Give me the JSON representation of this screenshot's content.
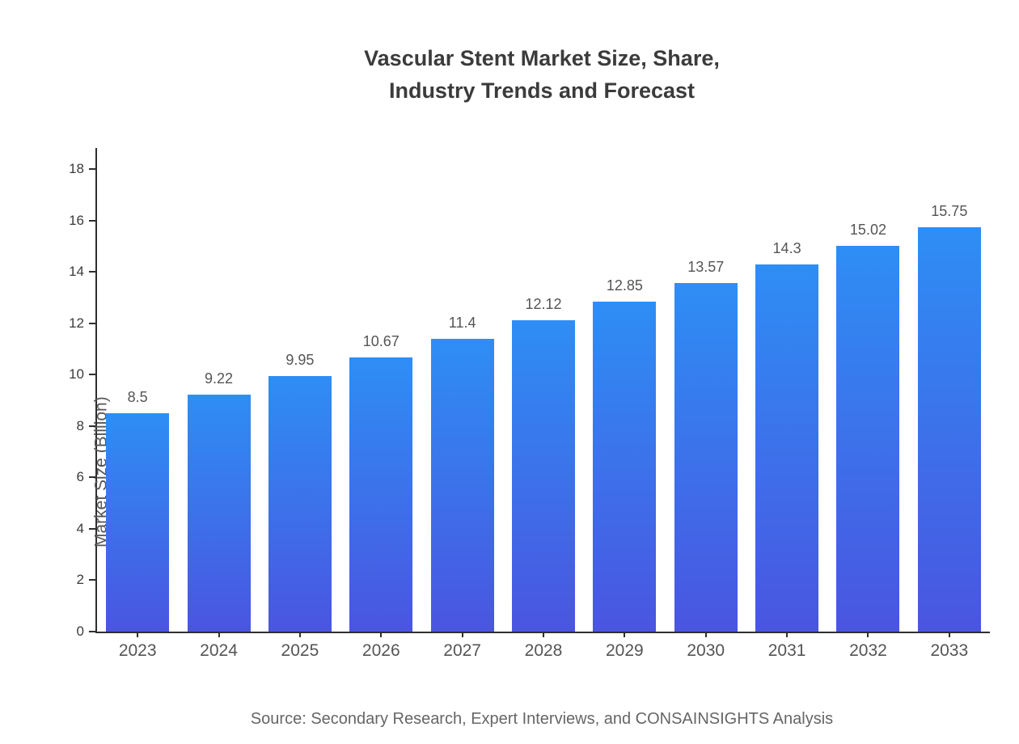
{
  "title": {
    "line1": "Vascular Stent Market Size, Share,",
    "line2": "Industry Trends and Forecast"
  },
  "source": "Source: Secondary Research, Expert Interviews, and CONSAINSIGHTS Analysis",
  "chart_data": {
    "type": "bar",
    "title": "Vascular Stent Market Size, Share, Industry Trends and Forecast",
    "categories": [
      "2023",
      "2024",
      "2025",
      "2026",
      "2027",
      "2028",
      "2029",
      "2030",
      "2031",
      "2032",
      "2033"
    ],
    "values": [
      8.5,
      9.22,
      9.95,
      10.67,
      11.4,
      12.12,
      12.85,
      13.57,
      14.3,
      15.02,
      15.75
    ],
    "value_labels": [
      "8.5",
      "9.22",
      "9.95",
      "10.67",
      "11.4",
      "12.12",
      "12.85",
      "13.57",
      "14.3",
      "15.02",
      "15.75"
    ],
    "xlabel": "",
    "ylabel": "Market Size (Billion)",
    "ylim": [
      0,
      18
    ],
    "ytick_step": 2,
    "grid": false,
    "legend": "none",
    "bar_gradient_top": "#2E8EF5",
    "bar_gradient_bottom": "#4A55E0",
    "axis_color": "#2f2f2f",
    "label_color": "#555555"
  }
}
